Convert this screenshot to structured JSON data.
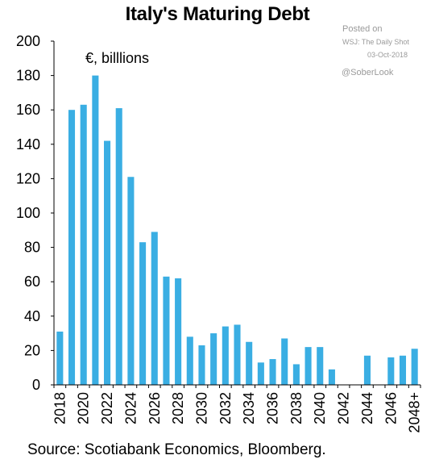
{
  "chart_data": {
    "type": "bar",
    "title": "Italy's Maturing Debt",
    "unit_label": "€, billlions",
    "xlabel": "",
    "ylabel": "",
    "ylim": [
      0,
      200
    ],
    "yticks": [
      0,
      20,
      40,
      60,
      80,
      100,
      120,
      140,
      160,
      180,
      200
    ],
    "categories": [
      "2018",
      "2019",
      "2020",
      "2021",
      "2022",
      "2023",
      "2024",
      "2025",
      "2026",
      "2027",
      "2028",
      "2029",
      "2030",
      "2031",
      "2032",
      "2033",
      "2034",
      "2035",
      "2036",
      "2037",
      "2038",
      "2039",
      "2040",
      "2041",
      "2042",
      "2043",
      "2044",
      "2045",
      "2046",
      "2047",
      "2048+"
    ],
    "xtick_labels": [
      "2018",
      "2020",
      "2022",
      "2024",
      "2026",
      "2028",
      "2030",
      "2032",
      "2034",
      "2036",
      "2038",
      "2040",
      "2042",
      "2044",
      "2046",
      "2048+"
    ],
    "values": [
      31,
      160,
      163,
      180,
      142,
      161,
      121,
      83,
      89,
      63,
      62,
      28,
      23,
      30,
      34,
      35,
      25,
      13,
      15,
      27,
      12,
      22,
      22,
      9,
      0,
      0,
      17,
      0,
      16,
      17,
      21
    ],
    "bar_color": "#3aaee3",
    "grid": false,
    "source": "Source: Scotiabank Economics, Bloomberg."
  },
  "notes": {
    "posted_on": "Posted on",
    "wsj": "WSJ: The Daily Shot",
    "date": "03-Oct-2018",
    "handle": "@SoberLook"
  }
}
